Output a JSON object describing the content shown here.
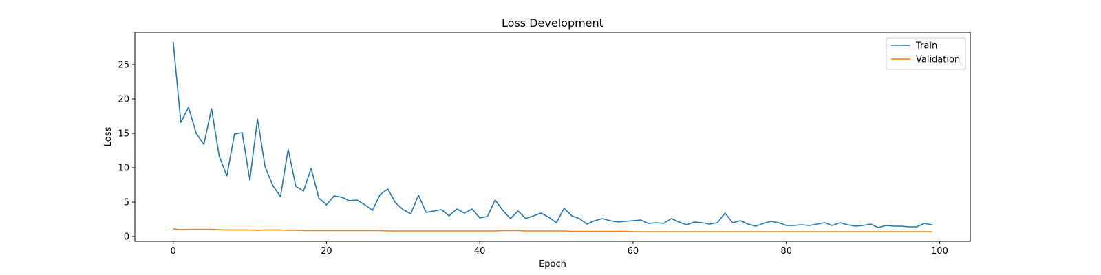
{
  "chart_data": {
    "type": "line",
    "title": "Loss Development",
    "xlabel": "Epoch",
    "ylabel": "Loss",
    "xlim": [
      -5,
      104
    ],
    "ylim": [
      -0.7,
      29.7
    ],
    "xticks": [
      0,
      20,
      40,
      60,
      80,
      100
    ],
    "yticks": [
      0,
      5,
      10,
      15,
      20,
      25
    ],
    "grid": false,
    "legend_position": "top-right",
    "x": [
      0,
      1,
      2,
      3,
      4,
      5,
      6,
      7,
      8,
      9,
      10,
      11,
      12,
      13,
      14,
      15,
      16,
      17,
      18,
      19,
      20,
      21,
      22,
      23,
      24,
      25,
      26,
      27,
      28,
      29,
      30,
      31,
      32,
      33,
      34,
      35,
      36,
      37,
      38,
      39,
      40,
      41,
      42,
      43,
      44,
      45,
      46,
      47,
      48,
      49,
      50,
      51,
      52,
      53,
      54,
      55,
      56,
      57,
      58,
      59,
      60,
      61,
      62,
      63,
      64,
      65,
      66,
      67,
      68,
      69,
      70,
      71,
      72,
      73,
      74,
      75,
      76,
      77,
      78,
      79,
      80,
      81,
      82,
      83,
      84,
      85,
      86,
      87,
      88,
      89,
      90,
      91,
      92,
      93,
      94,
      95,
      96,
      97,
      98,
      99
    ],
    "series": [
      {
        "name": "Train",
        "color": "#1f77b4",
        "values": [
          28.3,
          16.6,
          18.8,
          15.0,
          13.4,
          18.6,
          11.7,
          8.8,
          14.9,
          15.1,
          8.2,
          17.1,
          10.1,
          7.4,
          5.8,
          12.7,
          7.3,
          6.6,
          9.9,
          5.6,
          4.6,
          5.9,
          5.7,
          5.2,
          5.3,
          4.6,
          3.8,
          6.1,
          6.9,
          4.9,
          3.9,
          3.3,
          6.0,
          3.5,
          3.7,
          3.9,
          3.0,
          4.0,
          3.4,
          4.0,
          2.7,
          2.9,
          5.3,
          3.8,
          2.6,
          3.7,
          2.6,
          3.0,
          3.4,
          2.8,
          2.0,
          4.1,
          3.0,
          2.6,
          1.8,
          2.3,
          2.6,
          2.3,
          2.1,
          2.2,
          2.3,
          2.4,
          1.9,
          2.0,
          1.9,
          2.6,
          2.1,
          1.7,
          2.1,
          2.0,
          1.8,
          2.0,
          3.4,
          2.0,
          2.3,
          1.8,
          1.5,
          1.9,
          2.2,
          2.0,
          1.6,
          1.6,
          1.7,
          1.6,
          1.8,
          2.0,
          1.6,
          2.0,
          1.7,
          1.5,
          1.6,
          1.8,
          1.3,
          1.6,
          1.5,
          1.5,
          1.4,
          1.4,
          1.9,
          1.7
        ]
      },
      {
        "name": "Validation",
        "color": "#ff7f0e",
        "values": [
          1.1,
          1.0,
          1.05,
          1.05,
          1.05,
          1.05,
          1.0,
          0.95,
          0.95,
          0.95,
          0.95,
          0.9,
          0.95,
          0.95,
          0.95,
          0.9,
          0.9,
          0.85,
          0.85,
          0.85,
          0.85,
          0.85,
          0.85,
          0.85,
          0.85,
          0.85,
          0.85,
          0.85,
          0.8,
          0.8,
          0.8,
          0.8,
          0.8,
          0.8,
          0.8,
          0.8,
          0.8,
          0.8,
          0.8,
          0.8,
          0.8,
          0.8,
          0.8,
          0.85,
          0.85,
          0.85,
          0.8,
          0.8,
          0.8,
          0.8,
          0.8,
          0.8,
          0.75,
          0.75,
          0.75,
          0.75,
          0.75,
          0.75,
          0.75,
          0.75,
          0.7,
          0.7,
          0.7,
          0.7,
          0.7,
          0.7,
          0.7,
          0.7,
          0.7,
          0.7,
          0.7,
          0.7,
          0.7,
          0.7,
          0.7,
          0.7,
          0.7,
          0.7,
          0.7,
          0.7,
          0.7,
          0.7,
          0.7,
          0.7,
          0.7,
          0.7,
          0.7,
          0.7,
          0.7,
          0.7,
          0.7,
          0.7,
          0.7,
          0.7,
          0.7,
          0.7,
          0.7,
          0.7,
          0.7,
          0.7
        ]
      }
    ]
  }
}
